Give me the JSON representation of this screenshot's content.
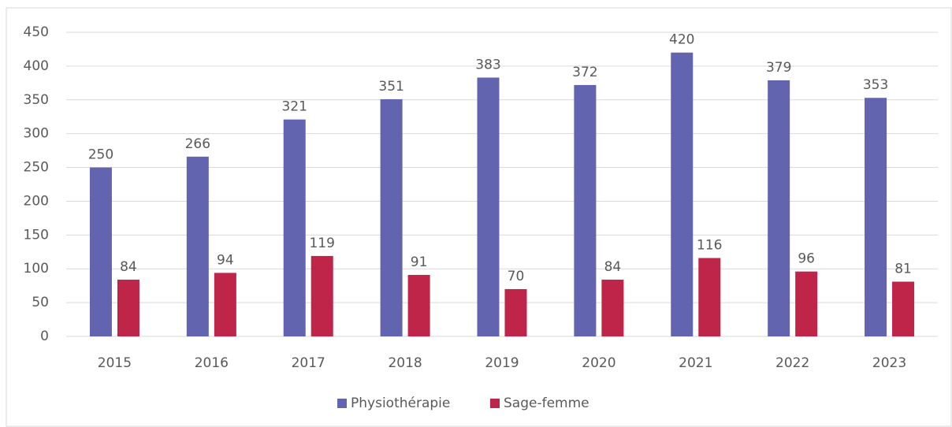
{
  "chart_data": {
    "type": "bar",
    "categories": [
      "2015",
      "2016",
      "2017",
      "2018",
      "2019",
      "2020",
      "2021",
      "2022",
      "2023"
    ],
    "series": [
      {
        "name": "Physiothérapie",
        "color": "#6264b0",
        "values": [
          250,
          266,
          321,
          351,
          383,
          372,
          420,
          379,
          353
        ]
      },
      {
        "name": "Sage-femme",
        "color": "#be2548",
        "values": [
          84,
          94,
          119,
          91,
          70,
          84,
          116,
          96,
          81
        ]
      }
    ],
    "ylim": [
      0,
      450
    ],
    "yticks": [
      0,
      50,
      100,
      150,
      200,
      250,
      300,
      350,
      400,
      450
    ],
    "grid": true,
    "legend": "bottom"
  }
}
